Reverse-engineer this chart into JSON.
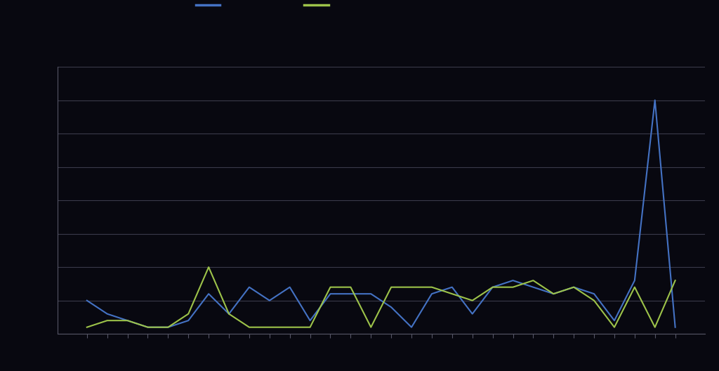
{
  "background_color": "#080810",
  "plot_bg_color": "#080810",
  "grid_color": "#3a3a4a",
  "line1_color": "#4472c4",
  "line2_color": "#9dc34a",
  "line1_label": " ",
  "line2_label": " ",
  "axis_color": "#555566",
  "tick_color": "#555566",
  "ylim": [
    0,
    40
  ],
  "yticks": [
    0,
    5,
    10,
    15,
    20,
    25,
    30,
    35,
    40
  ],
  "series1": [
    5,
    3,
    2,
    1,
    1,
    2,
    6,
    3,
    7,
    5,
    7,
    2,
    6,
    6,
    6,
    4,
    1,
    6,
    7,
    3,
    7,
    8,
    7,
    6,
    7,
    6,
    2,
    8,
    35,
    1
  ],
  "series2": [
    1,
    2,
    2,
    1,
    1,
    3,
    10,
    3,
    1,
    1,
    1,
    1,
    7,
    7,
    1,
    7,
    7,
    7,
    6,
    5,
    7,
    7,
    8,
    6,
    7,
    5,
    1,
    7,
    1,
    8
  ],
  "n_points": 30,
  "line_width": 1.5
}
